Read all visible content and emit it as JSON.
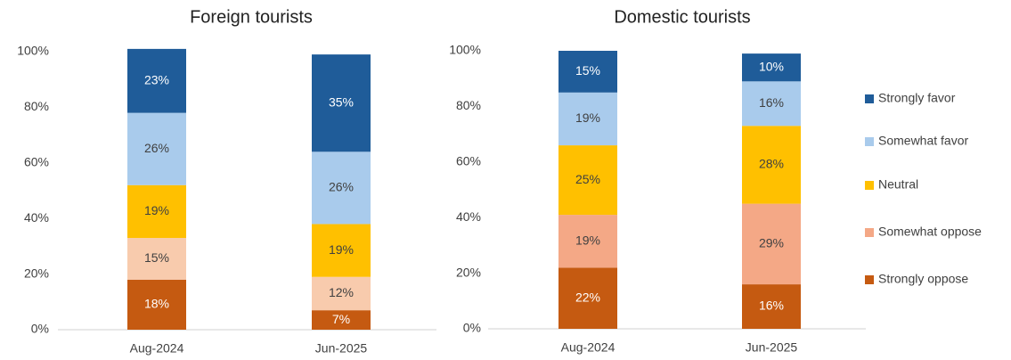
{
  "chart_data": [
    {
      "type": "stacked_bar",
      "title": "Foreign tourists",
      "categories": [
        "Aug-2024",
        "Jun-2025"
      ],
      "ylim": [
        0,
        100
      ],
      "yticks": [
        {
          "value": 0,
          "label": "0%"
        },
        {
          "value": 20,
          "label": "20%"
        },
        {
          "value": 40,
          "label": "40%"
        },
        {
          "value": 60,
          "label": "60%"
        },
        {
          "value": 80,
          "label": "80%"
        },
        {
          "value": 100,
          "label": "100%"
        }
      ],
      "series": [
        {
          "name": "Strongly oppose",
          "color": "#c55a11",
          "values": [
            18,
            7
          ],
          "value_labels": [
            "18%",
            "7%"
          ]
        },
        {
          "name": "Somewhat oppose",
          "color": "#f8cbad",
          "values": [
            15,
            12
          ],
          "value_labels": [
            "15%",
            "12%"
          ]
        },
        {
          "name": "Neutral",
          "color": "#ffc000",
          "values": [
            19,
            19
          ],
          "value_labels": [
            "19%",
            "19%"
          ]
        },
        {
          "name": "Somewhat favor",
          "color": "#a9cbec",
          "values": [
            26,
            26
          ],
          "value_labels": [
            "26%",
            "26%"
          ]
        },
        {
          "name": "Strongly favor",
          "color": "#1f5c99",
          "values": [
            23,
            35
          ],
          "value_labels": [
            "23%",
            "35%"
          ]
        }
      ]
    },
    {
      "type": "stacked_bar",
      "title": "Domestic tourists",
      "categories": [
        "Aug-2024",
        "Jun-2025"
      ],
      "ylim": [
        0,
        100
      ],
      "yticks": [
        {
          "value": 0,
          "label": "0%"
        },
        {
          "value": 20,
          "label": "20%"
        },
        {
          "value": 40,
          "label": "40%"
        },
        {
          "value": 60,
          "label": "60%"
        },
        {
          "value": 80,
          "label": "80%"
        },
        {
          "value": 100,
          "label": "100%"
        }
      ],
      "legend": "right",
      "series": [
        {
          "name": "Strongly oppose",
          "color": "#c55a11",
          "values": [
            22,
            16
          ],
          "value_labels": [
            "22%",
            "16%"
          ]
        },
        {
          "name": "Somewhat oppose",
          "color": "#f4a886",
          "values": [
            19,
            29
          ],
          "value_labels": [
            "19%",
            "29%"
          ]
        },
        {
          "name": "Neutral",
          "color": "#ffc000",
          "values": [
            25,
            28
          ],
          "value_labels": [
            "25%",
            "28%"
          ]
        },
        {
          "name": "Somewhat favor",
          "color": "#a9cbec",
          "values": [
            19,
            16
          ],
          "value_labels": [
            "19%",
            "16%"
          ]
        },
        {
          "name": "Strongly favor",
          "color": "#1f5c99",
          "values": [
            15,
            10
          ],
          "value_labels": [
            "15%",
            "10%"
          ]
        }
      ]
    }
  ]
}
